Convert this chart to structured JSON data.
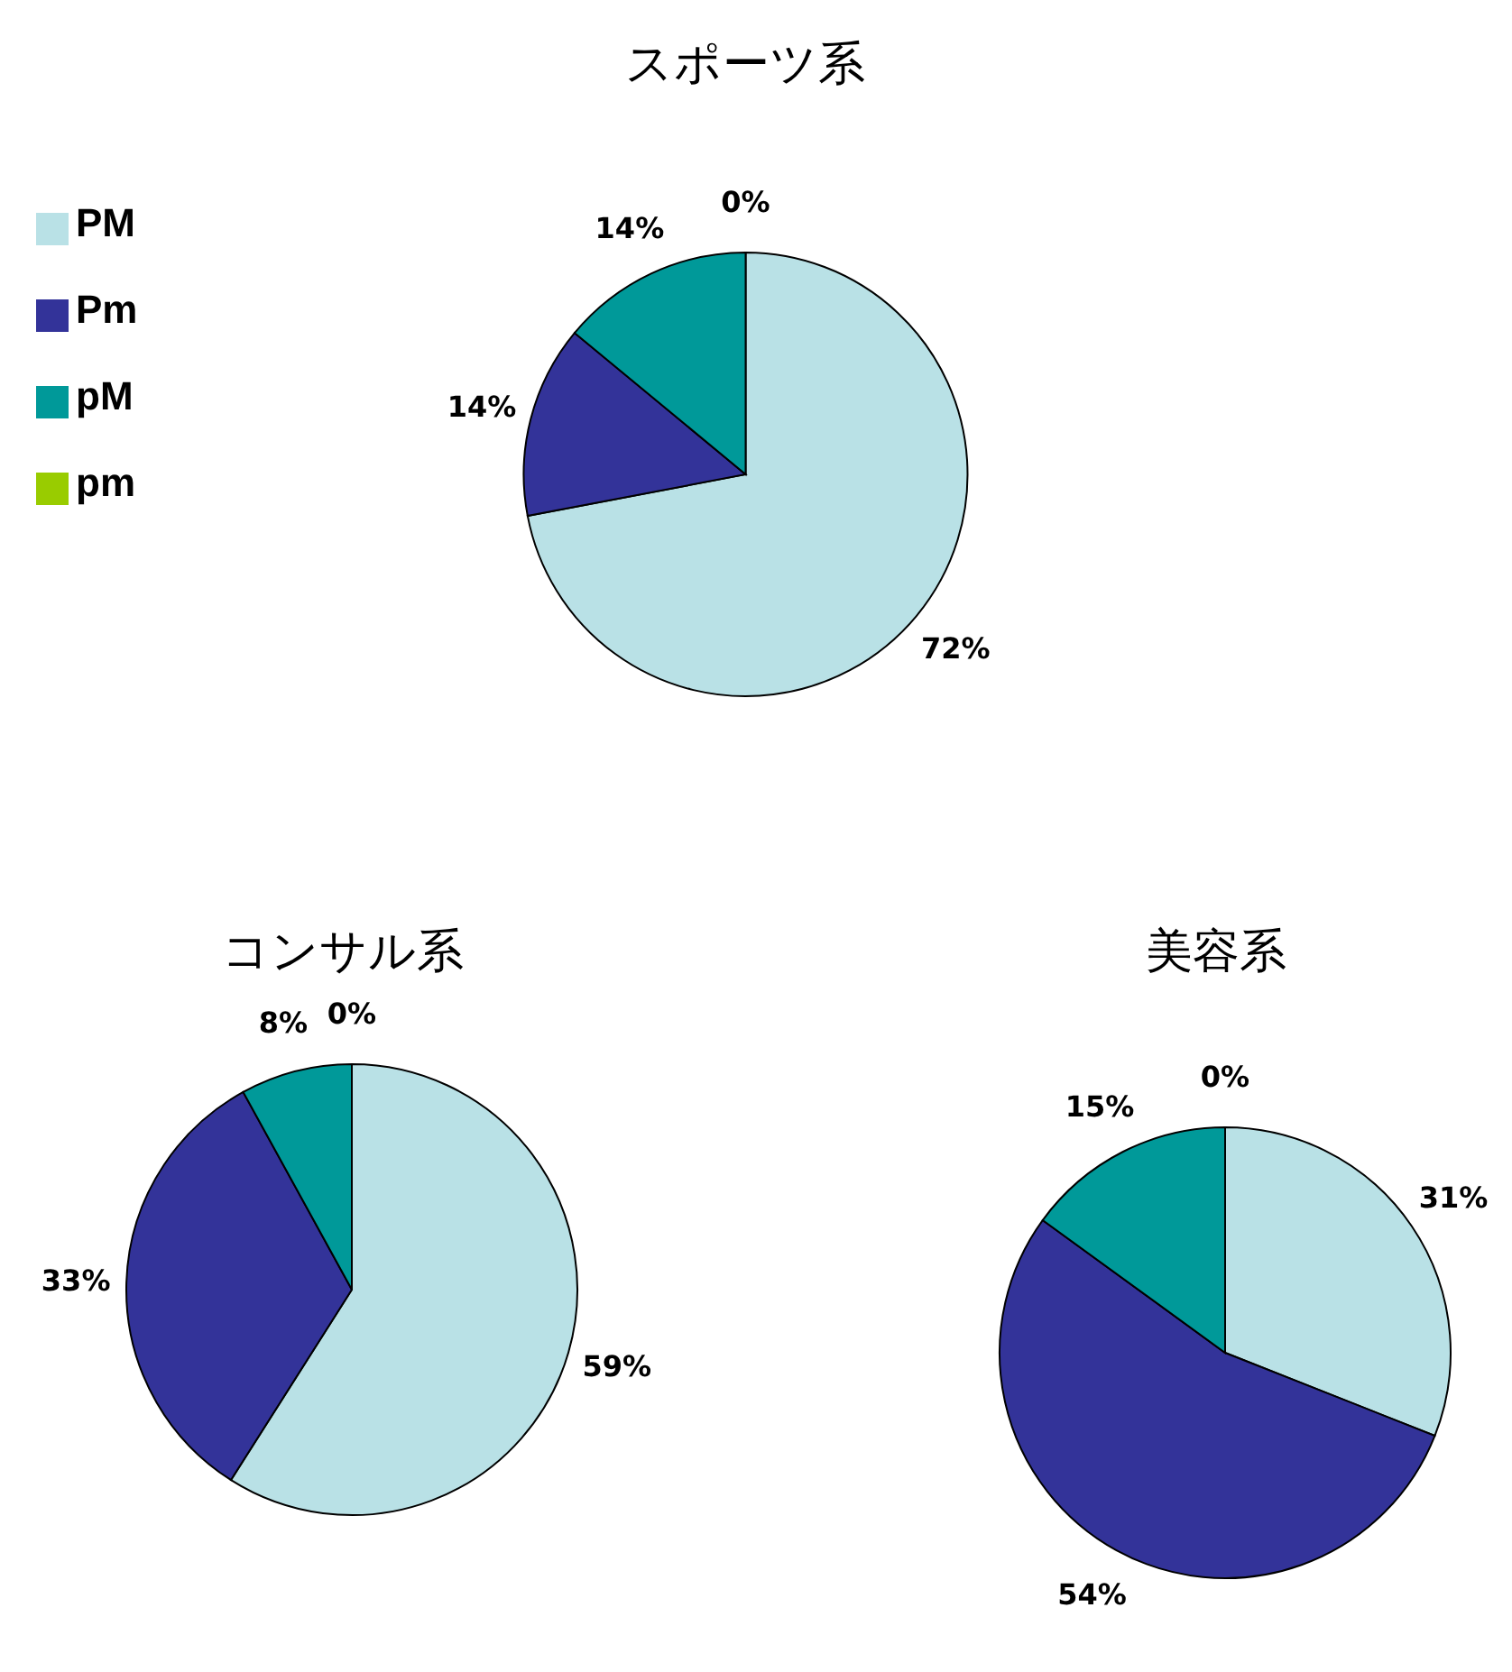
{
  "chart_data": [
    {
      "type": "pie",
      "title": "スポーツ系",
      "categories": [
        "PM",
        "Pm",
        "pM",
        "pm"
      ],
      "values": [
        72,
        14,
        14,
        0
      ],
      "colors": [
        "#b9e1e6",
        "#333399",
        "#009999",
        "#99cc00"
      ],
      "value_labels": [
        "72%",
        "14%",
        "14%",
        "0%"
      ],
      "legend": "left"
    },
    {
      "type": "pie",
      "title": "コンサル系",
      "values": [
        59,
        33,
        8,
        0
      ],
      "colors": [
        "#b9e1e6",
        "#333399",
        "#009999",
        "#99cc00"
      ],
      "value_labels": [
        "59%",
        "33%",
        "8%",
        "0%"
      ]
    },
    {
      "type": "pie",
      "title": "美容系",
      "values": [
        31,
        54,
        15,
        0
      ],
      "colors": [
        "#b9e1e6",
        "#333399",
        "#009999",
        "#99cc00"
      ],
      "value_labels": [
        "31%",
        "54%",
        "15%",
        "0%"
      ]
    }
  ]
}
